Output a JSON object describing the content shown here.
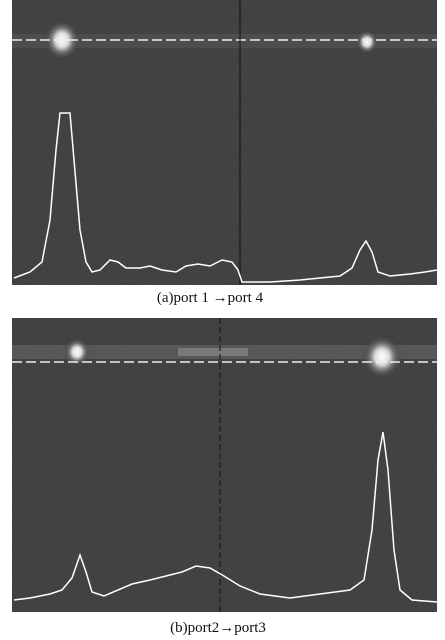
{
  "panels": [
    {
      "caption": "(a)port 1 →port 4"
    },
    {
      "caption": "(b)port2→port3"
    }
  ]
}
